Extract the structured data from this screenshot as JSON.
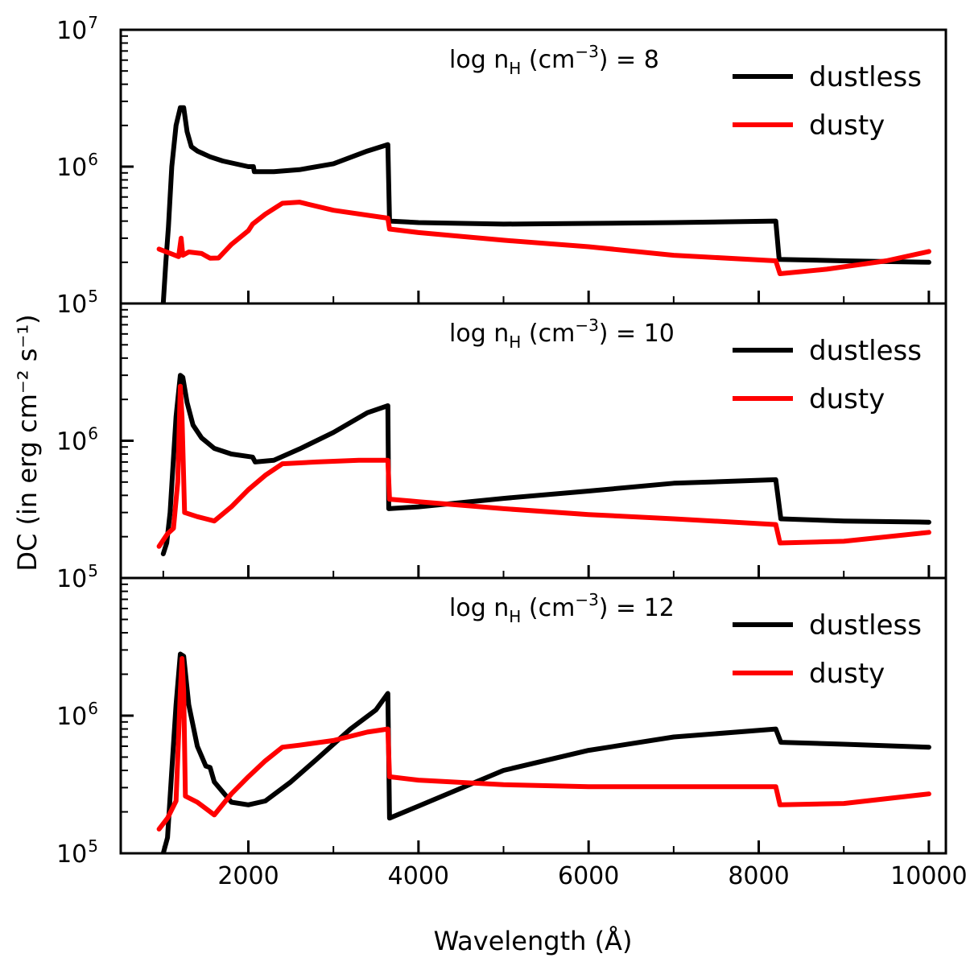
{
  "chart_data": {
    "type": "line",
    "xlabel": "Wavelength (Å)",
    "ylabel": "DC (in erg cm⁻² s⁻¹)",
    "xlim": [
      500,
      10200
    ],
    "xticks": [
      2000,
      4000,
      6000,
      8000,
      10000
    ],
    "y_scale": "log",
    "ylim": [
      100000,
      10000000
    ],
    "grid": false,
    "legend_placement": "top-right",
    "panels": [
      {
        "title": "log nH (cm⁻³) = 8",
        "title_main": "log n",
        "title_sub": "H",
        "title_rest": " (cm",
        "title_sup": "−3",
        "title_end": ") = 8",
        "ytick_labels": [
          "10",
          "10",
          "10"
        ],
        "ytick_exps": [
          "5",
          "6",
          "7"
        ],
        "series": [
          {
            "name": "dustless",
            "color": "#000000",
            "points": [
              [
                1000,
                100000
              ],
              [
                1030,
                200000
              ],
              [
                1060,
                360000
              ],
              [
                1100,
                1000000
              ],
              [
                1150,
                2000000
              ],
              [
                1200,
                2700000
              ],
              [
                1240,
                2700000
              ],
              [
                1280,
                1800000
              ],
              [
                1330,
                1400000
              ],
              [
                1400,
                1300000
              ],
              [
                1550,
                1180000
              ],
              [
                1700,
                1100000
              ],
              [
                2000,
                1000000
              ],
              [
                2060,
                1000000
              ],
              [
                2070,
                920000
              ],
              [
                2300,
                920000
              ],
              [
                2600,
                950000
              ],
              [
                3000,
                1050000
              ],
              [
                3400,
                1300000
              ],
              [
                3640,
                1450000
              ],
              [
                3660,
                400000
              ],
              [
                4000,
                390000
              ],
              [
                5000,
                380000
              ],
              [
                6000,
                385000
              ],
              [
                7000,
                390000
              ],
              [
                8200,
                400000
              ],
              [
                8240,
                210000
              ],
              [
                9000,
                205000
              ],
              [
                10000,
                200000
              ]
            ]
          },
          {
            "name": "dusty",
            "color": "#ff0000",
            "points": [
              [
                950,
                250000
              ],
              [
                1100,
                230000
              ],
              [
                1180,
                220000
              ],
              [
                1210,
                300000
              ],
              [
                1230,
                225000
              ],
              [
                1300,
                238000
              ],
              [
                1450,
                232000
              ],
              [
                1550,
                214000
              ],
              [
                1650,
                215000
              ],
              [
                1800,
                270000
              ],
              [
                2000,
                340000
              ],
              [
                2050,
                380000
              ],
              [
                2200,
                450000
              ],
              [
                2400,
                540000
              ],
              [
                2600,
                550000
              ],
              [
                3000,
                480000
              ],
              [
                3640,
                420000
              ],
              [
                3660,
                350000
              ],
              [
                4000,
                330000
              ],
              [
                5000,
                290000
              ],
              [
                6000,
                260000
              ],
              [
                7000,
                225000
              ],
              [
                8200,
                205000
              ],
              [
                8250,
                165000
              ],
              [
                8800,
                178000
              ],
              [
                9500,
                205000
              ],
              [
                10000,
                240000
              ]
            ]
          }
        ]
      },
      {
        "title": "log nH (cm⁻³) = 10",
        "title_main": "log n",
        "title_sub": "H",
        "title_rest": " (cm",
        "title_sup": "−3",
        "title_end": ") = 10",
        "ytick_labels": [
          "10",
          "10"
        ],
        "ytick_exps": [
          "5",
          "6"
        ],
        "series": [
          {
            "name": "dustless",
            "color": "#000000",
            "points": [
              [
                1000,
                150000
              ],
              [
                1040,
                180000
              ],
              [
                1080,
                300000
              ],
              [
                1150,
                1500000
              ],
              [
                1200,
                3000000
              ],
              [
                1230,
                2900000
              ],
              [
                1280,
                1900000
              ],
              [
                1350,
                1300000
              ],
              [
                1450,
                1050000
              ],
              [
                1600,
                880000
              ],
              [
                1800,
                800000
              ],
              [
                2050,
                760000
              ],
              [
                2080,
                700000
              ],
              [
                2300,
                720000
              ],
              [
                2600,
                870000
              ],
              [
                3000,
                1150000
              ],
              [
                3400,
                1600000
              ],
              [
                3640,
                1800000
              ],
              [
                3650,
                320000
              ],
              [
                4000,
                330000
              ],
              [
                5000,
                380000
              ],
              [
                6000,
                430000
              ],
              [
                7000,
                490000
              ],
              [
                8200,
                520000
              ],
              [
                8260,
                270000
              ],
              [
                9000,
                260000
              ],
              [
                10000,
                255000
              ]
            ]
          },
          {
            "name": "dusty",
            "color": "#ff0000",
            "points": [
              [
                950,
                170000
              ],
              [
                1050,
                210000
              ],
              [
                1120,
                230000
              ],
              [
                1170,
                500000
              ],
              [
                1200,
                2500000
              ],
              [
                1220,
                1500000
              ],
              [
                1250,
                300000
              ],
              [
                1400,
                280000
              ],
              [
                1600,
                260000
              ],
              [
                1800,
                330000
              ],
              [
                2000,
                440000
              ],
              [
                2200,
                560000
              ],
              [
                2400,
                680000
              ],
              [
                2800,
                700000
              ],
              [
                3300,
                720000
              ],
              [
                3640,
                720000
              ],
              [
                3660,
                375000
              ],
              [
                4000,
                360000
              ],
              [
                5000,
                320000
              ],
              [
                6000,
                290000
              ],
              [
                7000,
                270000
              ],
              [
                8200,
                245000
              ],
              [
                8250,
                180000
              ],
              [
                9000,
                185000
              ],
              [
                10000,
                215000
              ]
            ]
          }
        ]
      },
      {
        "title": "log nH (cm⁻³) = 12",
        "title_main": "log n",
        "title_sub": "H",
        "title_rest": " (cm",
        "title_sup": "−3",
        "title_end": ") = 12",
        "ytick_labels": [
          "10",
          "10"
        ],
        "ytick_exps": [
          "5",
          "6"
        ],
        "series": [
          {
            "name": "dustless",
            "color": "#000000",
            "points": [
              [
                1000,
                100000
              ],
              [
                1050,
                130000
              ],
              [
                1100,
                400000
              ],
              [
                1150,
                1200000
              ],
              [
                1200,
                2800000
              ],
              [
                1240,
                2700000
              ],
              [
                1300,
                1200000
              ],
              [
                1400,
                600000
              ],
              [
                1500,
                430000
              ],
              [
                1550,
                420000
              ],
              [
                1600,
                330000
              ],
              [
                1800,
                235000
              ],
              [
                2000,
                225000
              ],
              [
                2200,
                240000
              ],
              [
                2500,
                330000
              ],
              [
                2800,
                480000
              ],
              [
                3200,
                800000
              ],
              [
                3500,
                1100000
              ],
              [
                3640,
                1450000
              ],
              [
                3660,
                180000
              ],
              [
                4000,
                220000
              ],
              [
                5000,
                400000
              ],
              [
                6000,
                560000
              ],
              [
                7000,
                700000
              ],
              [
                8200,
                800000
              ],
              [
                8260,
                640000
              ],
              [
                9000,
                620000
              ],
              [
                10000,
                590000
              ]
            ]
          },
          {
            "name": "dusty",
            "color": "#ff0000",
            "points": [
              [
                950,
                150000
              ],
              [
                1050,
                180000
              ],
              [
                1150,
                240000
              ],
              [
                1200,
                1500000
              ],
              [
                1220,
                2600000
              ],
              [
                1240,
                1500000
              ],
              [
                1260,
                260000
              ],
              [
                1400,
                235000
              ],
              [
                1600,
                190000
              ],
              [
                1800,
                270000
              ],
              [
                2000,
                360000
              ],
              [
                2200,
                470000
              ],
              [
                2400,
                590000
              ],
              [
                2600,
                610000
              ],
              [
                3000,
                660000
              ],
              [
                3400,
                760000
              ],
              [
                3640,
                800000
              ],
              [
                3660,
                360000
              ],
              [
                4000,
                340000
              ],
              [
                5000,
                315000
              ],
              [
                6000,
                305000
              ],
              [
                7000,
                305000
              ],
              [
                8200,
                305000
              ],
              [
                8250,
                225000
              ],
              [
                9000,
                230000
              ],
              [
                10000,
                270000
              ]
            ]
          }
        ]
      }
    ]
  }
}
